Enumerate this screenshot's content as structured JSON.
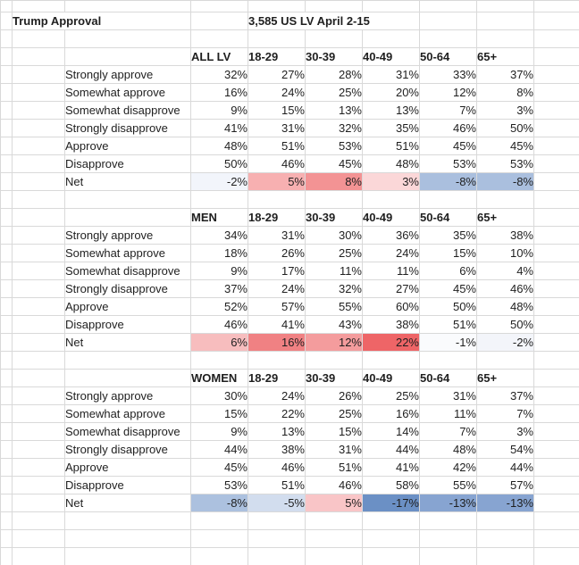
{
  "sheet": {
    "title": "Trump Approval",
    "subtitle": "3,585 US LV April 2-15",
    "age_headers": [
      "18-29",
      "30-39",
      "40-49",
      "50-64",
      "65+"
    ],
    "gridline_color": "#D9D9D9",
    "tables": [
      {
        "group": "ALL LV",
        "rows": [
          {
            "label": "Strongly approve",
            "values": [
              "32%",
              "27%",
              "28%",
              "31%",
              "33%",
              "37%"
            ]
          },
          {
            "label": "Somewhat approve",
            "values": [
              "16%",
              "24%",
              "25%",
              "20%",
              "12%",
              "8%"
            ]
          },
          {
            "label": "Somewhat disapprove",
            "values": [
              "9%",
              "15%",
              "13%",
              "13%",
              "7%",
              "3%"
            ]
          },
          {
            "label": "Strongly disapprove",
            "values": [
              "41%",
              "31%",
              "32%",
              "35%",
              "46%",
              "50%"
            ]
          },
          {
            "label": "Approve",
            "values": [
              "48%",
              "51%",
              "53%",
              "51%",
              "45%",
              "45%"
            ]
          },
          {
            "label": "Disapprove",
            "values": [
              "50%",
              "46%",
              "45%",
              "48%",
              "53%",
              "53%"
            ]
          },
          {
            "label": "Net",
            "values": [
              "-2%",
              "5%",
              "8%",
              "3%",
              "-8%",
              "-8%"
            ],
            "colors": [
              "#F2F5FB",
              "#F7B0B1",
              "#F39394",
              "#FBD7D8",
              "#AABFDE",
              "#AABFDE"
            ]
          }
        ]
      },
      {
        "group": "MEN",
        "rows": [
          {
            "label": "Strongly approve",
            "values": [
              "34%",
              "31%",
              "30%",
              "36%",
              "35%",
              "38%"
            ]
          },
          {
            "label": "Somewhat approve",
            "values": [
              "18%",
              "26%",
              "25%",
              "24%",
              "15%",
              "10%"
            ]
          },
          {
            "label": "Somewhat disapprove",
            "values": [
              "9%",
              "17%",
              "11%",
              "11%",
              "6%",
              "4%"
            ]
          },
          {
            "label": "Strongly disapprove",
            "values": [
              "37%",
              "24%",
              "32%",
              "27%",
              "45%",
              "46%"
            ]
          },
          {
            "label": "Approve",
            "values": [
              "52%",
              "57%",
              "55%",
              "60%",
              "50%",
              "48%"
            ]
          },
          {
            "label": "Disapprove",
            "values": [
              "46%",
              "41%",
              "43%",
              "38%",
              "51%",
              "50%"
            ]
          },
          {
            "label": "Net",
            "values": [
              "6%",
              "16%",
              "12%",
              "22%",
              "-1%",
              "-2%"
            ],
            "colors": [
              "#F7BDBE",
              "#F08183",
              "#F49C9D",
              "#EE6567",
              "#FAFBFD",
              "#F3F5FA"
            ]
          }
        ]
      },
      {
        "group": "WOMEN",
        "rows": [
          {
            "label": "Strongly approve",
            "values": [
              "30%",
              "24%",
              "26%",
              "25%",
              "31%",
              "37%"
            ]
          },
          {
            "label": "Somewhat approve",
            "values": [
              "15%",
              "22%",
              "25%",
              "16%",
              "11%",
              "7%"
            ]
          },
          {
            "label": "Somewhat disapprove",
            "values": [
              "9%",
              "13%",
              "15%",
              "14%",
              "7%",
              "3%"
            ]
          },
          {
            "label": "Strongly disapprove",
            "values": [
              "44%",
              "38%",
              "31%",
              "44%",
              "48%",
              "54%"
            ]
          },
          {
            "label": "Approve",
            "values": [
              "45%",
              "46%",
              "51%",
              "41%",
              "42%",
              "44%"
            ]
          },
          {
            "label": "Disapprove",
            "values": [
              "53%",
              "51%",
              "46%",
              "58%",
              "55%",
              "57%"
            ]
          },
          {
            "label": "Net",
            "values": [
              "-8%",
              "-5%",
              "5%",
              "-17%",
              "-13%",
              "-13%"
            ],
            "colors": [
              "#ACC1DF",
              "#D2DDEE",
              "#F9C5C7",
              "#6B90C5",
              "#87A4D1",
              "#87A4D1"
            ]
          }
        ]
      }
    ]
  }
}
